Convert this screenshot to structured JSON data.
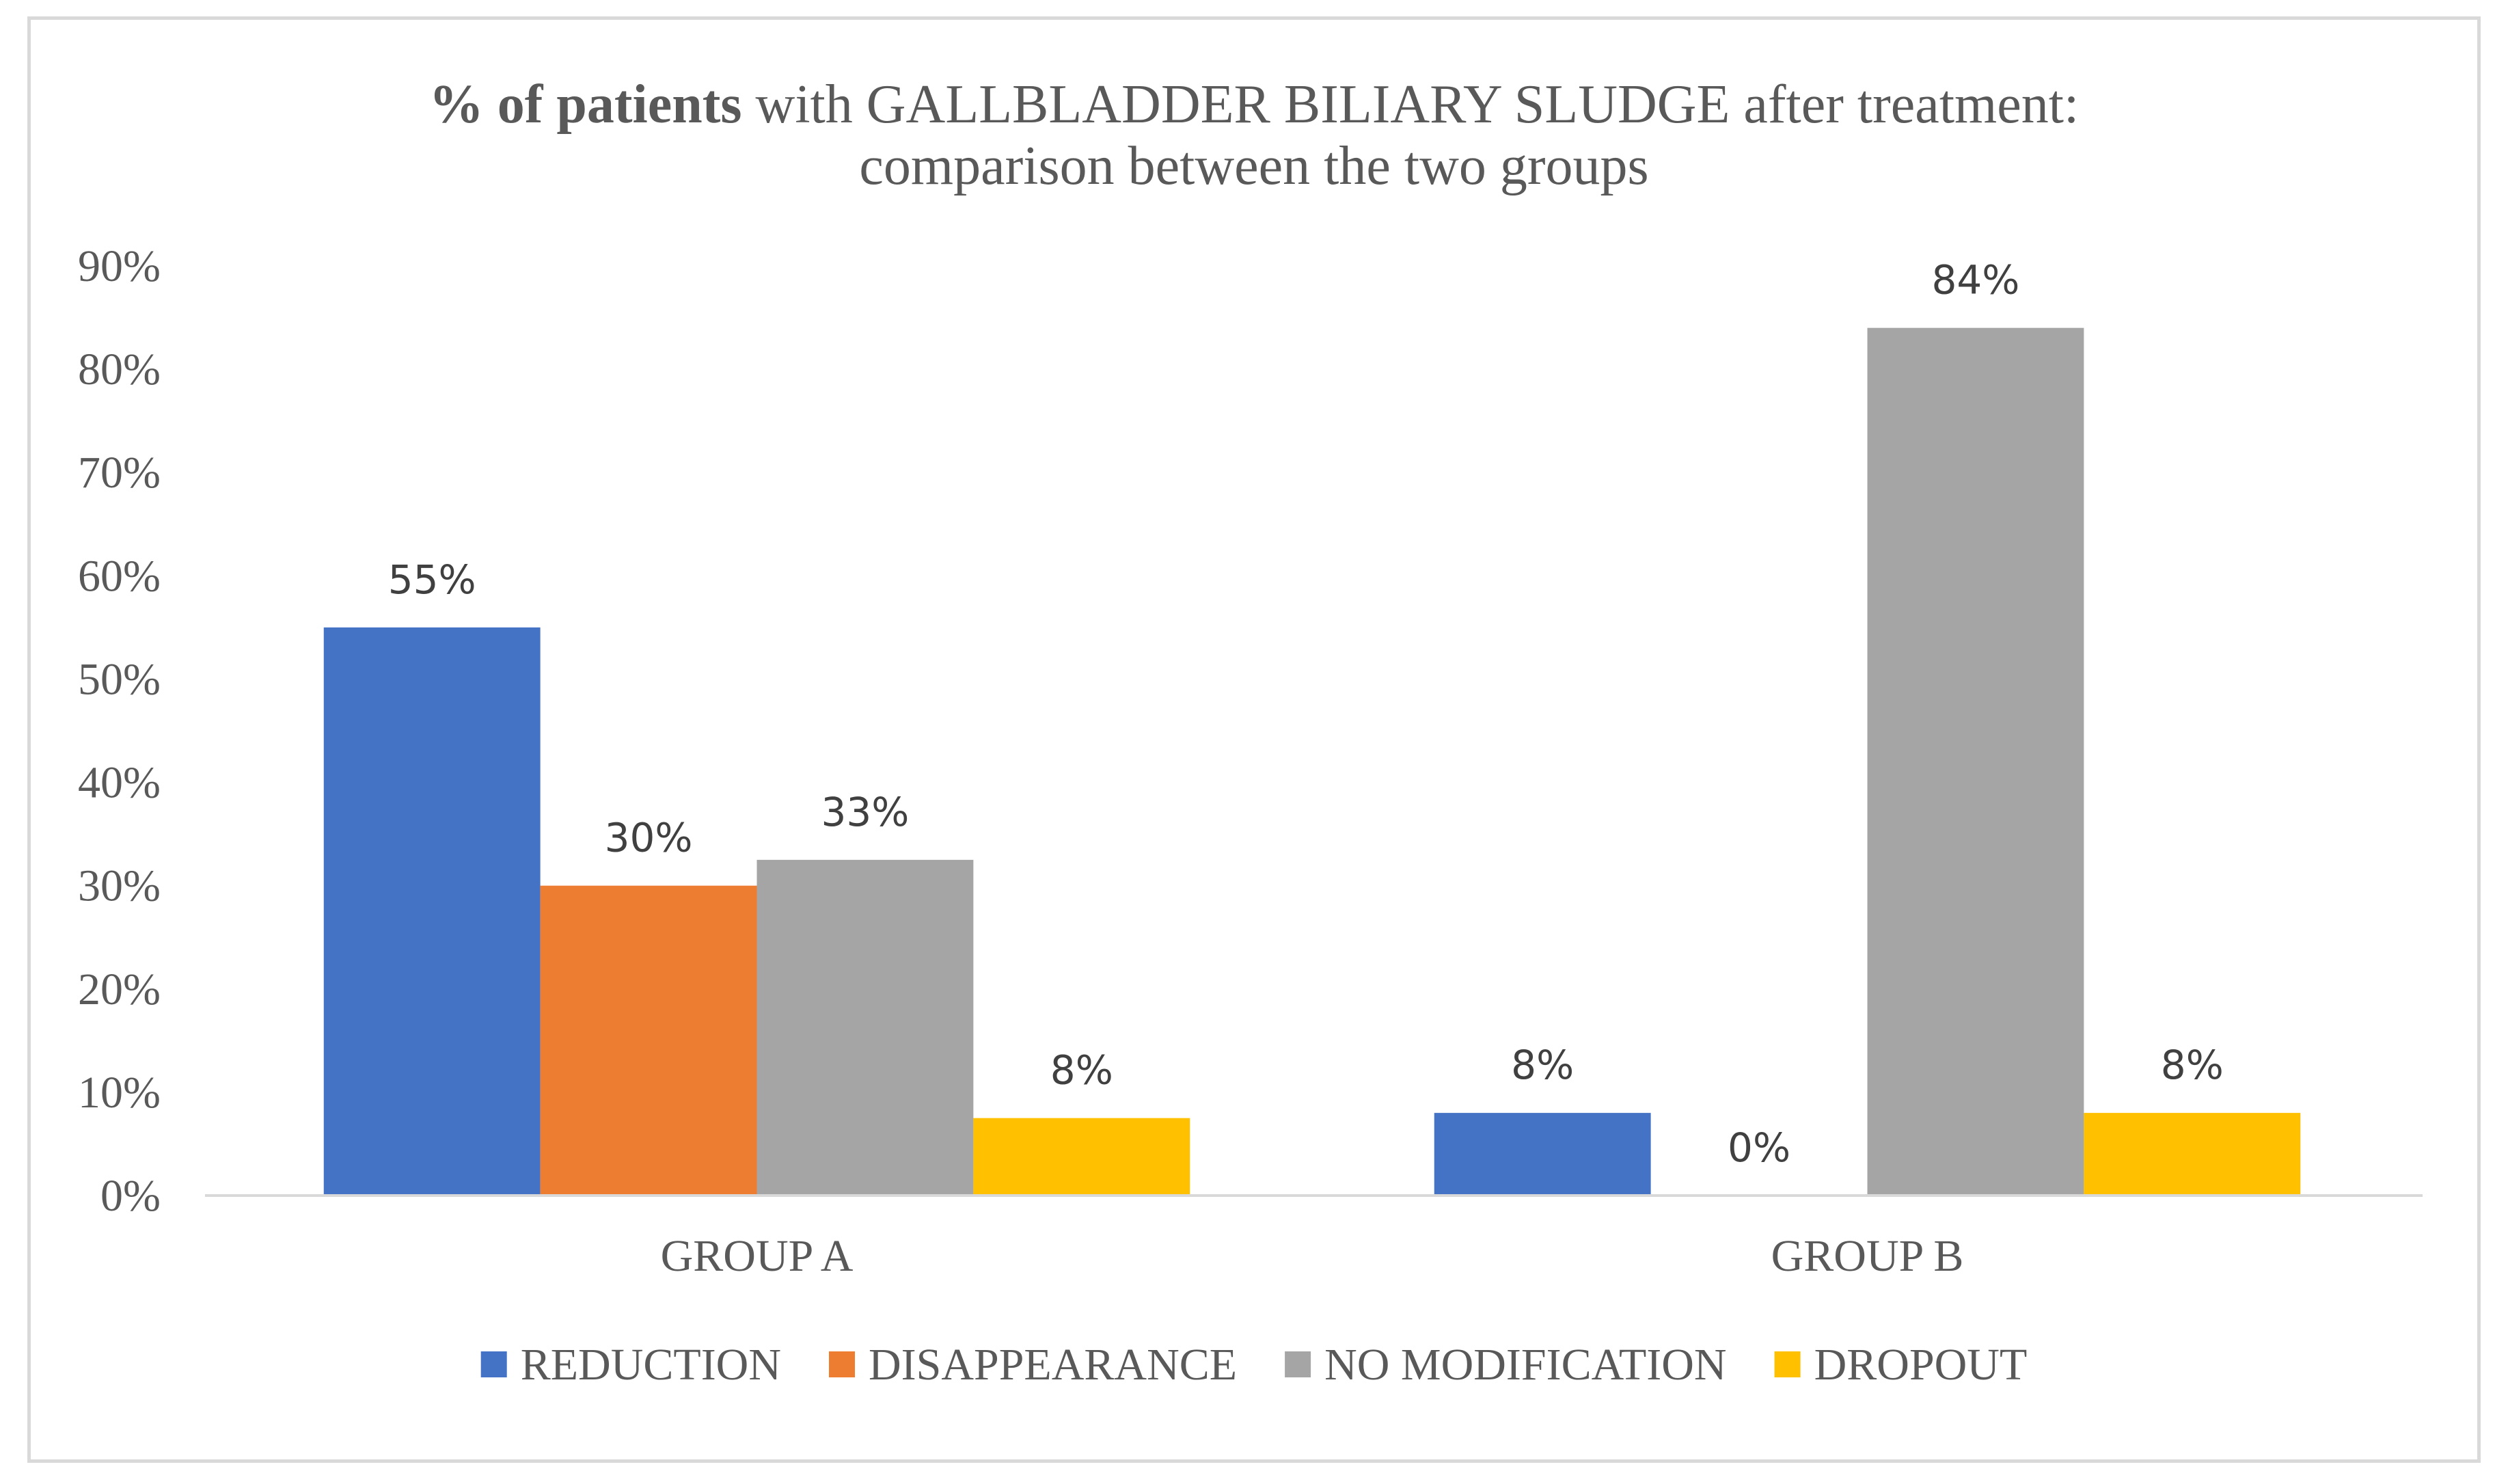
{
  "chart_data": {
    "type": "bar",
    "title": {
      "bold": "% of patients",
      "rest": " with GALLBLADDER BILIARY SLUDGE after treatment:",
      "line2": "comparison between the two groups"
    },
    "categories": [
      "GROUP A",
      "GROUP B"
    ],
    "series": [
      {
        "name": "REDUCTION",
        "color": "#4472C4",
        "values": [
          55,
          8
        ],
        "labels": [
          "55%",
          "8%"
        ]
      },
      {
        "name": "DISAPPEARANCE",
        "color": "#ED7D31",
        "values": [
          30,
          0
        ],
        "labels": [
          "30%",
          "0%"
        ]
      },
      {
        "name": "NO MODIFICATION",
        "color": "#A5A5A5",
        "values": [
          32.5,
          84
        ],
        "labels": [
          "33%",
          "84%"
        ]
      },
      {
        "name": "DROPOUT",
        "color": "#FFC000",
        "values": [
          7.5,
          8
        ],
        "labels": [
          "8%",
          "8%"
        ]
      }
    ],
    "yticks": [
      "0%",
      "10%",
      "20%",
      "30%",
      "40%",
      "50%",
      "60%",
      "70%",
      "80%",
      "90%"
    ],
    "ylim": [
      0,
      90
    ],
    "xlabel": "",
    "ylabel": "",
    "grid": false,
    "legend": "bottom"
  }
}
